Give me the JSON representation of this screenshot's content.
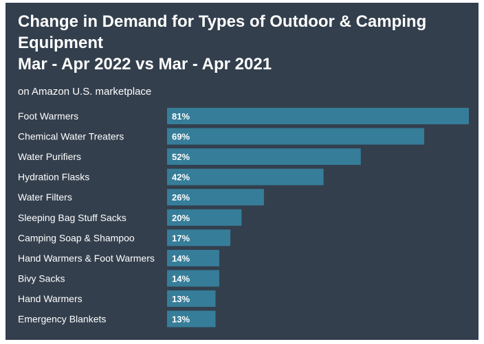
{
  "chart_data": {
    "type": "bar",
    "orientation": "horizontal",
    "title_lines": [
      "Change in Demand for Types of Outdoor & Camping",
      "Equipment",
      "Mar - Apr 2022 vs Mar - Apr 2021"
    ],
    "subtitle": "on Amazon U.S. marketplace",
    "categories": [
      "Foot Warmers",
      "Chemical Water Treaters",
      "Water Purifiers",
      "Hydration Flasks",
      "Water Filters",
      "Sleeping Bag Stuff Sacks",
      "Camping Soap & Shampoo",
      "Hand Warmers & Foot Warmers",
      "Bivy Sacks",
      "Hand Warmers",
      "Emergency Blankets"
    ],
    "values": [
      81,
      69,
      52,
      42,
      26,
      20,
      17,
      14,
      14,
      13,
      13
    ],
    "value_labels": [
      "81%",
      "69%",
      "52%",
      "42%",
      "26%",
      "20%",
      "17%",
      "14%",
      "14%",
      "13%",
      "13%"
    ],
    "unit": "%",
    "xlim": [
      0,
      81
    ],
    "xlabel": "",
    "ylabel": "",
    "grid": false,
    "legend": "none"
  },
  "colors": {
    "background": "#333f4d",
    "bar": "#367d99",
    "text": "#ffffff"
  }
}
